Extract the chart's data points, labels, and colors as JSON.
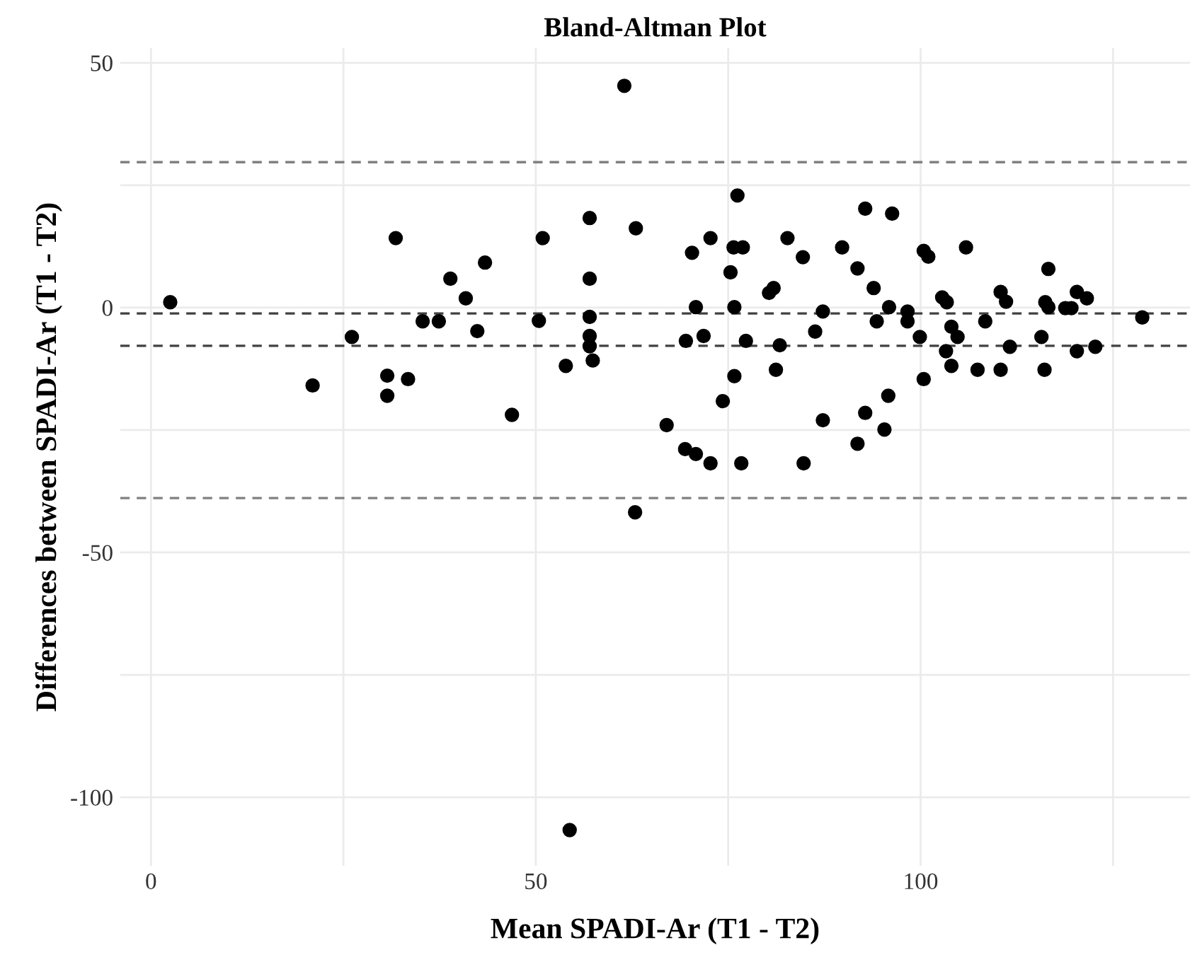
{
  "chart_data": {
    "type": "scatter",
    "title": "Bland-Altman Plot",
    "xlabel": "Mean SPADI-Ar (T1 - T2)",
    "ylabel": "Differences between SPADI-Ar (T1 - T2)",
    "series": [
      {
        "color": "#000000",
        "x": [
          2.5,
          31.8,
          43.4,
          38.9,
          40.9,
          35.3,
          37.4,
          42.4,
          26.1,
          61.5,
          76.2,
          57.0,
          92.8,
          96.3,
          50.9,
          63.0,
          70.3,
          72.7,
          75.7,
          76.9,
          82.7,
          84.7,
          89.8,
          91.8,
          93.9,
          75.3,
          57.0,
          80.3,
          80.9,
          95.9,
          98.3,
          98.3,
          94.3,
          50.4,
          57.0,
          70.8,
          75.8,
          87.3,
          86.3,
          57.0,
          71.8,
          69.5,
          77.3,
          81.7,
          100.4,
          101.0,
          105.9,
          116.6,
          102.8,
          103.4,
          110.4,
          111.1,
          120.3,
          121.6,
          116.2,
          116.6,
          118.8,
          119.6,
          128.8,
          108.4,
          99.9,
          104.0,
          104.8,
          103.3,
          111.6,
          115.7,
          120.3,
          122.7,
          104.0,
          107.4,
          110.4,
          116.1,
          100.4,
          95.8,
          92.8,
          57.0,
          57.4,
          53.9,
          21.0,
          30.7,
          30.7,
          33.4,
          46.9,
          62.9,
          75.8,
          81.2,
          74.3,
          67.0,
          69.4,
          70.8,
          72.7,
          76.7,
          84.8,
          87.3,
          95.3,
          91.8,
          54.4
        ],
        "values": [
          1.1,
          14.2,
          9.2,
          5.9,
          1.9,
          -2.8,
          -2.8,
          -4.8,
          -6.0,
          45.3,
          22.9,
          18.3,
          20.2,
          19.2,
          14.2,
          16.2,
          11.2,
          14.2,
          12.3,
          12.3,
          14.2,
          10.3,
          12.3,
          8.0,
          4.0,
          7.2,
          5.9,
          3.0,
          4.0,
          0.1,
          -0.8,
          -2.8,
          -2.8,
          -2.7,
          -1.9,
          0.1,
          0.1,
          -0.8,
          -4.9,
          -5.8,
          -5.8,
          -6.8,
          -6.8,
          -7.7,
          11.6,
          10.4,
          12.3,
          7.9,
          2.1,
          1.1,
          3.2,
          1.2,
          3.2,
          1.9,
          1.1,
          0.1,
          -0.1,
          -0.1,
          -2.0,
          -2.8,
          -6.0,
          -3.9,
          -6.0,
          -8.9,
          -8.0,
          -6.0,
          -8.9,
          -8.0,
          -11.9,
          -12.7,
          -12.7,
          -12.7,
          -14.6,
          -18.0,
          -21.5,
          -7.9,
          -10.8,
          -11.9,
          -15.9,
          -13.9,
          -18.0,
          -14.6,
          -21.9,
          -41.8,
          -14.0,
          -12.7,
          -19.1,
          -24.0,
          -28.9,
          -29.9,
          -31.8,
          -31.8,
          -31.8,
          -23.0,
          -24.9,
          -27.8,
          -106.7
        ]
      }
    ],
    "marker": "circle",
    "ref_lines": [
      {
        "axis": "y",
        "value": 29.7,
        "label": null,
        "color": "#808080",
        "line_style": "dashed"
      },
      {
        "axis": "y",
        "value": -1.2,
        "label": null,
        "color": "#404040",
        "line_style": "dashed"
      },
      {
        "axis": "y",
        "value": -7.8,
        "label": null,
        "color": "#404040",
        "line_style": "dashed"
      },
      {
        "axis": "y",
        "value": -38.9,
        "label": null,
        "color": "#808080",
        "line_style": "dashed"
      }
    ],
    "xlim": [
      -4,
      135
    ],
    "ylim": [
      -114,
      53
    ],
    "xticks": [
      0,
      {
        "value": 25,
        "label": null
      },
      50,
      {
        "value": 75,
        "label": null
      },
      100,
      {
        "value": 125,
        "label": null
      }
    ],
    "yticks": [
      -100,
      {
        "value": -75,
        "label": null
      },
      -50,
      {
        "value": -25,
        "label": null
      },
      0,
      {
        "value": 25,
        "label": null
      },
      50
    ],
    "grid": true
  }
}
